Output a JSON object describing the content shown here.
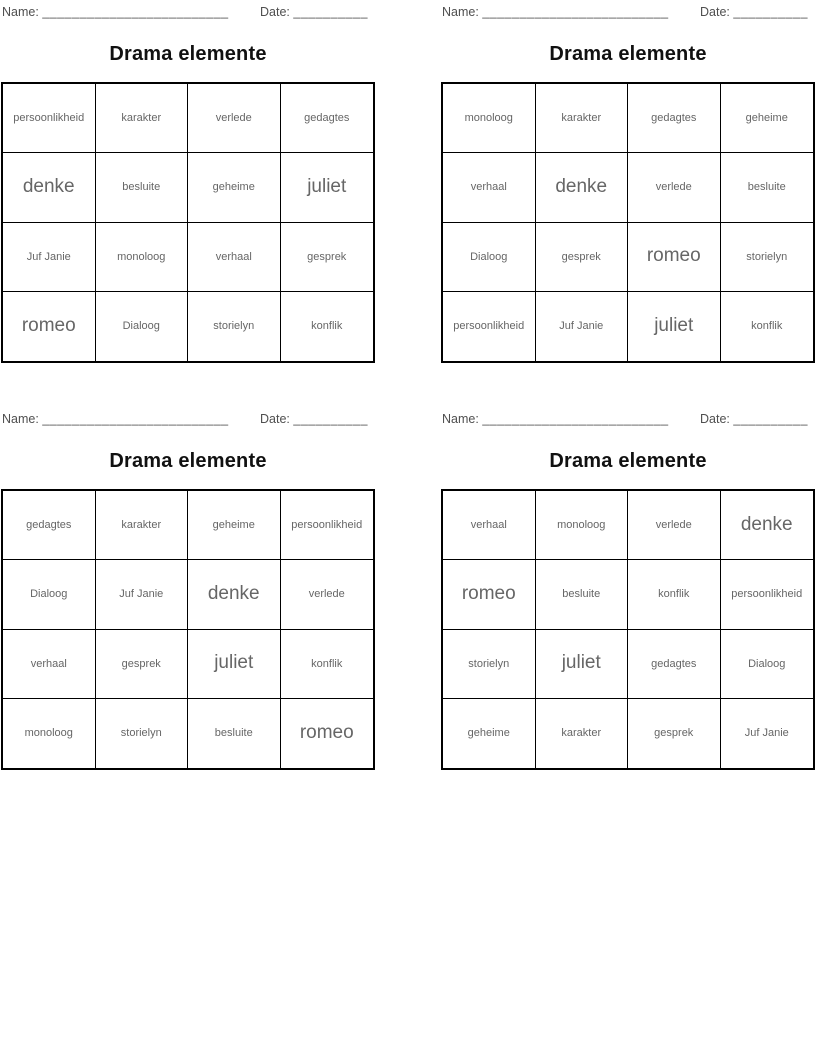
{
  "colors": {
    "border": "#000000",
    "cell_text": "#666666",
    "label_text": "#4f4f4f",
    "title_text": "#111111",
    "page_bg": "#ffffff"
  },
  "header": {
    "name_label": "Name:",
    "name_blank": "_________________________",
    "date_label": "Date:",
    "date_blank": "__________"
  },
  "large_words": [
    "denke",
    "juliet",
    "romeo"
  ],
  "cards": [
    {
      "title": "Drama elemente",
      "words": [
        [
          "persoonlikheid",
          "karakter",
          "verlede",
          "gedagtes"
        ],
        [
          "denke",
          "besluite",
          "geheime",
          "juliet"
        ],
        [
          "Juf Janie",
          "monoloog",
          "verhaal",
          "gesprek"
        ],
        [
          "romeo",
          "Dialoog",
          "storielyn",
          "konflik"
        ]
      ]
    },
    {
      "title": "Drama elemente",
      "words": [
        [
          "monoloog",
          "karakter",
          "gedagtes",
          "geheime"
        ],
        [
          "verhaal",
          "denke",
          "verlede",
          "besluite"
        ],
        [
          "Dialoog",
          "gesprek",
          "romeo",
          "storielyn"
        ],
        [
          "persoonlikheid",
          "Juf Janie",
          "juliet",
          "konflik"
        ]
      ]
    },
    {
      "title": "Drama elemente",
      "words": [
        [
          "gedagtes",
          "karakter",
          "geheime",
          "persoonlikheid"
        ],
        [
          "Dialoog",
          "Juf Janie",
          "denke",
          "verlede"
        ],
        [
          "verhaal",
          "gesprek",
          "juliet",
          "konflik"
        ],
        [
          "monoloog",
          "storielyn",
          "besluite",
          "romeo"
        ]
      ]
    },
    {
      "title": "Drama elemente",
      "words": [
        [
          "verhaal",
          "monoloog",
          "verlede",
          "denke"
        ],
        [
          "romeo",
          "besluite",
          "konflik",
          "persoonlikheid"
        ],
        [
          "storielyn",
          "juliet",
          "gedagtes",
          "Dialoog"
        ],
        [
          "geheime",
          "karakter",
          "gesprek",
          "Juf Janie"
        ]
      ]
    }
  ]
}
